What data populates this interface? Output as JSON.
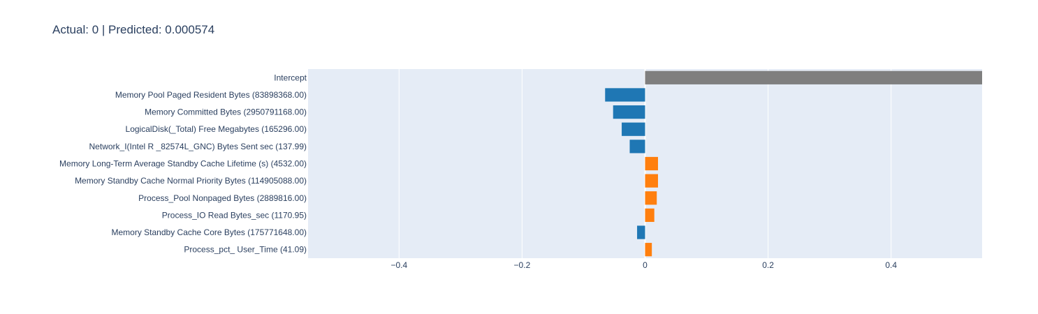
{
  "title": "Actual: 0 | Predicted: 0.000574",
  "colors": {
    "background": "#e5ecf6",
    "grid": "#ffffff",
    "intercept": "#7f7f7f",
    "negative": "#1f77b4",
    "positive": "#ff7f0e",
    "text": "#2a3f5f"
  },
  "chart_data": {
    "type": "bar",
    "orientation": "horizontal",
    "title": "Actual: 0 | Predicted: 0.000574",
    "xlabel": "",
    "ylabel": "",
    "xlim": [
      -0.548,
      0.548
    ],
    "grid": true,
    "x_ticks": [
      {
        "value": -0.4,
        "label": "−0.4"
      },
      {
        "value": -0.2,
        "label": "−0.2"
      },
      {
        "value": 0,
        "label": "0"
      },
      {
        "value": 0.2,
        "label": "0.2"
      },
      {
        "value": 0.4,
        "label": "0.4"
      }
    ],
    "categories": [
      "Intercept",
      "Memory Pool Paged Resident Bytes (83898368.00)",
      "Memory Committed Bytes (2950791168.00)",
      "LogicalDisk(_Total) Free Megabytes (165296.00)",
      "Network_I(Intel R _82574L_GNC) Bytes Sent sec (137.99)",
      "Memory Long-Term Average Standby Cache Lifetime (s) (4532.00)",
      "Memory Standby Cache Normal Priority Bytes (114905088.00)",
      "Process_Pool Nonpaged Bytes (2889816.00)",
      "Process_IO Read Bytes_sec (1170.95)",
      "Memory Standby Cache Core Bytes (175771648.00)",
      "Process_pct_ User_Time (41.09)"
    ],
    "values": [
      0.548,
      -0.065,
      -0.052,
      -0.038,
      -0.025,
      0.021,
      0.021,
      0.019,
      0.015,
      -0.013,
      0.011
    ]
  }
}
